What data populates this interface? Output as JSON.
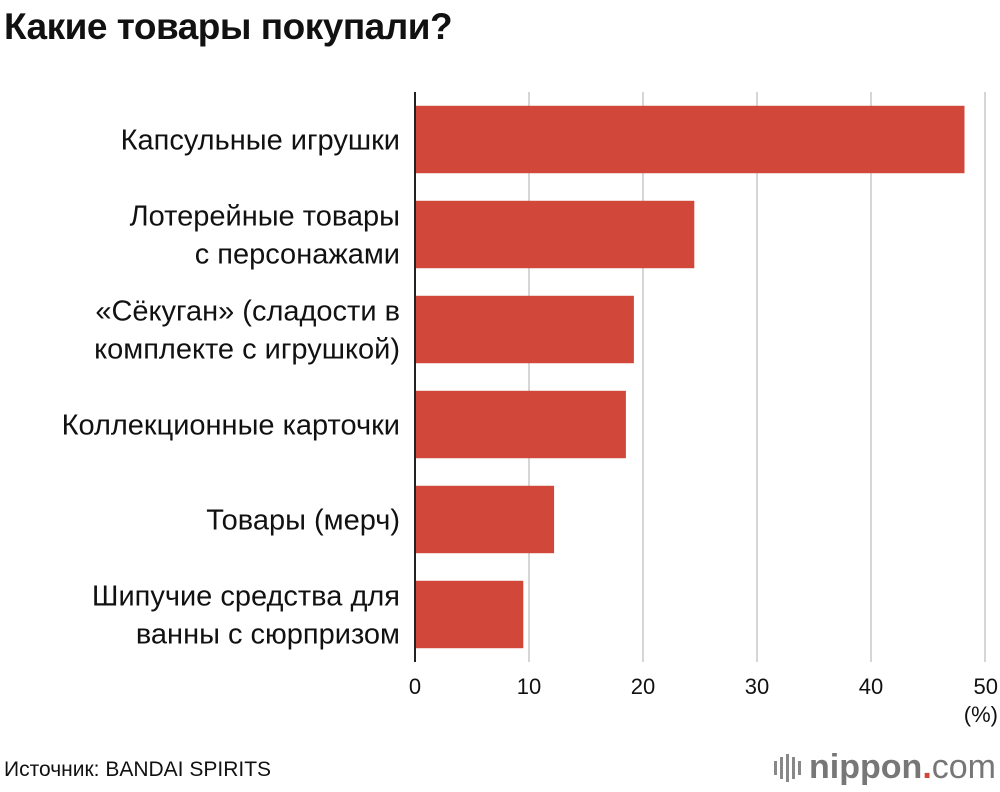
{
  "header": {
    "title": "Какие товары покупали?"
  },
  "chart_data": {
    "type": "bar",
    "orientation": "horizontal",
    "title": "Какие товары покупали?",
    "categories": [
      [
        "Капсульные игрушки"
      ],
      [
        "Лотерейные товары",
        "с персонажами"
      ],
      [
        "«Сёкуган» (сладости в",
        "комплекте с игрушкой)"
      ],
      [
        "Коллекционные карточки"
      ],
      [
        "Товары (мерч)"
      ],
      [
        "Шипучие средства для",
        "ванны с сюрпризом"
      ]
    ],
    "values": [
      48.2,
      24.5,
      19.2,
      18.5,
      12.2,
      9.5
    ],
    "xlim": [
      0,
      50
    ],
    "ticks": [
      0,
      10,
      20,
      30,
      40,
      50
    ],
    "unit_label": "(%)",
    "grid": "vertical",
    "bar_color": "#d1473a",
    "grid_color": "#c8c8c8"
  },
  "footer": {
    "source": "Источник: BANDAI SPIRITS",
    "logo_name": "nippon",
    "logo_dot": ".",
    "logo_tld": "com"
  }
}
